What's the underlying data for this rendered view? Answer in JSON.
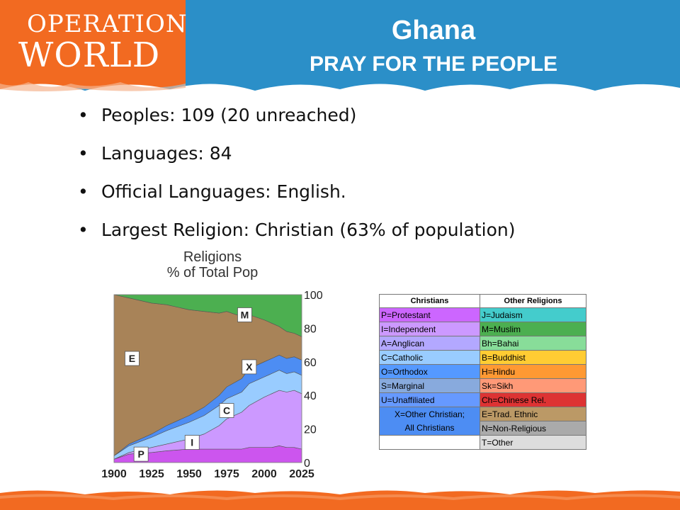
{
  "header": {
    "logo_line1": "OPERATION",
    "logo_line2": "WORLD",
    "title": "Ghana",
    "subtitle": "PRAY FOR THE PEOPLE"
  },
  "bullets": [
    "Peoples: 109 (20 unreached)",
    "Languages: 84",
    "Official Languages: English.",
    "Largest Religion: Christian (63% of population)"
  ],
  "chart_data": {
    "type": "area",
    "title": "Religions",
    "subtitle": "% of Total Pop",
    "x": [
      1900,
      1910,
      1925,
      1935,
      1950,
      1960,
      1970,
      1975,
      1985,
      1990,
      2000,
      2005,
      2010,
      2015,
      2020,
      2025
    ],
    "xticks": [
      1900,
      1925,
      1950,
      1975,
      2000,
      2025
    ],
    "yticks": [
      0,
      20,
      40,
      60,
      80,
      100
    ],
    "ylim": [
      0,
      100
    ],
    "series": [
      {
        "name": "P",
        "color": "#cc55ee",
        "values": [
          2,
          5,
          6,
          7,
          8,
          8,
          8,
          8,
          8,
          9,
          9,
          9,
          10,
          9,
          9,
          8
        ]
      },
      {
        "name": "I",
        "color": "#cc99ff",
        "values": [
          0,
          1,
          3,
          4,
          6,
          9,
          14,
          18,
          22,
          25,
          30,
          32,
          33,
          33,
          34,
          33
        ]
      },
      {
        "name": "C",
        "color": "#99ccff",
        "values": [
          2,
          4,
          6,
          8,
          10,
          11,
          12,
          12,
          12,
          13,
          12,
          12,
          12,
          11,
          11,
          11
        ]
      },
      {
        "name": "X",
        "color": "#4d8df3",
        "values": [
          0,
          1,
          2,
          3,
          4,
          5,
          6,
          7,
          8,
          9,
          9,
          9,
          9,
          9,
          9,
          9
        ]
      },
      {
        "name": "E",
        "color": "#a88358",
        "values": [
          96,
          87,
          78,
          72,
          63,
          57,
          49,
          45,
          37,
          32,
          25,
          21,
          17,
          16,
          14,
          14
        ]
      },
      {
        "name": "M",
        "color": "#4caf50",
        "values": [
          0,
          2,
          5,
          6,
          9,
          10,
          11,
          10,
          13,
          12,
          15,
          17,
          19,
          22,
          23,
          25
        ]
      }
    ],
    "labels": [
      {
        "text": "M",
        "x": 1987,
        "y": 88
      },
      {
        "text": "E",
        "x": 1912,
        "y": 62
      },
      {
        "text": "X",
        "x": 1990,
        "y": 57
      },
      {
        "text": "C",
        "x": 1975,
        "y": 31
      },
      {
        "text": "I",
        "x": 1952,
        "y": 12
      },
      {
        "text": "P",
        "x": 1918,
        "y": 5
      }
    ]
  },
  "legend": {
    "col1_header": "Christians",
    "col2_header": "Other Religions",
    "rows": [
      {
        "c1": "P=Protestant",
        "c1_color": "#cc66ff",
        "c2": "J=Judaism",
        "c2_color": "#44cccc"
      },
      {
        "c1": "I=Independent",
        "c1_color": "#cc99ff",
        "c2": "M=Muslim",
        "c2_color": "#4caf50"
      },
      {
        "c1": "A=Anglican",
        "c1_color": "#b3a8ff",
        "c2": "Bh=Bahai",
        "c2_color": "#88dd99"
      },
      {
        "c1": "C=Catholic",
        "c1_color": "#99ccff",
        "c2": "B=Buddhist",
        "c2_color": "#ffcc33"
      },
      {
        "c1": "O=Orthodox",
        "c1_color": "#5599ff",
        "c2": "H=Hindu",
        "c2_color": "#ff9933"
      },
      {
        "c1": "S=Marginal",
        "c1_color": "#88aadd",
        "c2": "Sk=Sikh",
        "c2_color": "#ff9977"
      },
      {
        "c1": "U=Unaffiliated",
        "c1_color": "#6699ff",
        "c2": "Ch=Chinese Rel.",
        "c2_color": "#dd3333"
      },
      {
        "c1": "X=Other Christian;",
        "c1_color": "#4d8df3",
        "c2": "E=Trad. Ethnic",
        "c2_color": "#bb9966"
      },
      {
        "c1": "All Christians",
        "c1_color": "#4d8df3",
        "c2": "N=Non-Religious",
        "c2_color": "#aaaaaa"
      },
      {
        "c1": "",
        "c1_color": "#ffffff",
        "c2": "T=Other",
        "c2_color": "#dddddd"
      }
    ]
  },
  "colors": {
    "header_orange": "#f26a21",
    "header_blue": "#2b8fc8",
    "chart_background": "#ffffff"
  }
}
